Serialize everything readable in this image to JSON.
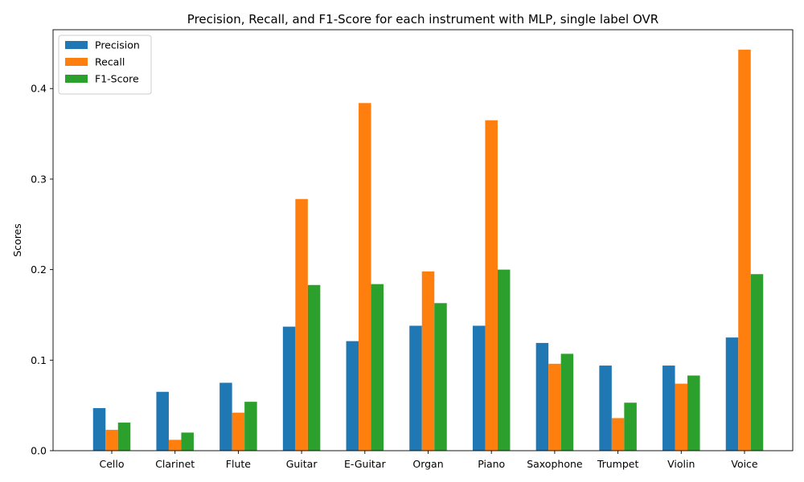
{
  "chart_data": {
    "type": "bar",
    "title": "Precision, Recall, and F1-Score for each instrument with MLP, single label OVR",
    "xlabel": "",
    "ylabel": "Scores",
    "ylim": [
      0,
      0.465
    ],
    "yticks": [
      "0.0",
      "0.1",
      "0.2",
      "0.3",
      "0.4"
    ],
    "categories": [
      "Cello",
      "Clarinet",
      "Flute",
      "Guitar",
      "E-Guitar",
      "Organ",
      "Piano",
      "Saxophone",
      "Trumpet",
      "Violin",
      "Voice"
    ],
    "series": [
      {
        "name": "Precision",
        "color": "#1f77b4",
        "values": [
          0.047,
          0.065,
          0.075,
          0.137,
          0.121,
          0.138,
          0.138,
          0.119,
          0.094,
          0.094,
          0.125
        ]
      },
      {
        "name": "Recall",
        "color": "#ff7f0e",
        "values": [
          0.023,
          0.012,
          0.042,
          0.278,
          0.384,
          0.198,
          0.365,
          0.096,
          0.036,
          0.074,
          0.443
        ]
      },
      {
        "name": "F1-Score",
        "color": "#2ca02c",
        "values": [
          0.031,
          0.02,
          0.054,
          0.183,
          0.184,
          0.163,
          0.2,
          0.107,
          0.053,
          0.083,
          0.195
        ]
      }
    ],
    "grid": false,
    "legend_position": "top-left"
  }
}
